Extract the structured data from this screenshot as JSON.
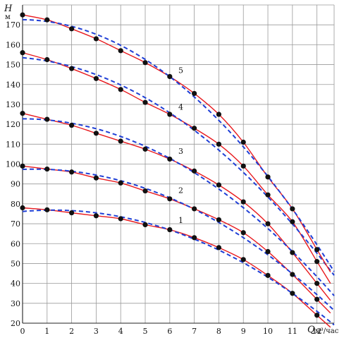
{
  "chart_data": {
    "type": "line",
    "title": "",
    "xlabel": "Q",
    "xunit": "м³/час",
    "ylabel": "H",
    "yunit": "м",
    "xlim": [
      0,
      12.7
    ],
    "ylim": [
      20,
      180
    ],
    "x_ticks": [
      0,
      1,
      2,
      3,
      4,
      5,
      6,
      7,
      8,
      9,
      10,
      11,
      12
    ],
    "y_ticks": [
      20,
      30,
      40,
      50,
      60,
      70,
      80,
      90,
      100,
      110,
      120,
      130,
      140,
      150,
      160,
      170
    ],
    "grid": true,
    "colors": {
      "measured": "#111111",
      "model": "#e8191d",
      "fit": "#1f3fd6"
    },
    "curves": [
      {
        "label": "1",
        "x": [
          0,
          1,
          2,
          3,
          4,
          5,
          6,
          7,
          8,
          9,
          10,
          11,
          12
        ],
        "points": [
          78,
          77,
          75.5,
          74,
          72.5,
          69.5,
          67,
          63,
          58,
          52,
          44,
          35,
          24
        ],
        "dashed_end": [
          12.7,
          29
        ]
      },
      {
        "label": "2",
        "x": [
          0,
          1,
          2,
          3,
          4,
          5,
          6,
          7,
          8,
          9,
          10,
          11,
          12
        ],
        "points": [
          99,
          97.5,
          96,
          93,
          90.5,
          86.5,
          82.5,
          77.5,
          72,
          65.5,
          56,
          44.5,
          32
        ],
        "dashed_end": [
          12.7,
          36
        ]
      },
      {
        "label": "3",
        "x": [
          0,
          1,
          2,
          3,
          4,
          5,
          6,
          7,
          8,
          9,
          10,
          11,
          12
        ],
        "points": [
          125.5,
          122.5,
          119.5,
          115.5,
          111.5,
          107.5,
          102.5,
          96.5,
          89.5,
          81,
          70,
          55.5,
          40
        ],
        "dashed_end": [
          12.7,
          42
        ]
      },
      {
        "label": "4",
        "x": [
          0,
          1,
          2,
          3,
          4,
          5,
          6,
          7,
          8,
          9,
          10,
          11,
          12
        ],
        "points": [
          156,
          152.5,
          148,
          143,
          137.5,
          131,
          125,
          118,
          110,
          99,
          84.5,
          71,
          51
        ],
        "dashed_end": [
          12.7,
          45
        ]
      },
      {
        "label": "5",
        "x": [
          0,
          1,
          2,
          3,
          4,
          5,
          6,
          7,
          8,
          9,
          10,
          11,
          12
        ],
        "points": [
          175,
          172.5,
          168,
          163,
          157,
          151,
          144,
          135.5,
          125,
          111,
          93.5,
          77.5,
          57
        ],
        "dashed_end": [
          12.7,
          47
        ]
      }
    ]
  }
}
